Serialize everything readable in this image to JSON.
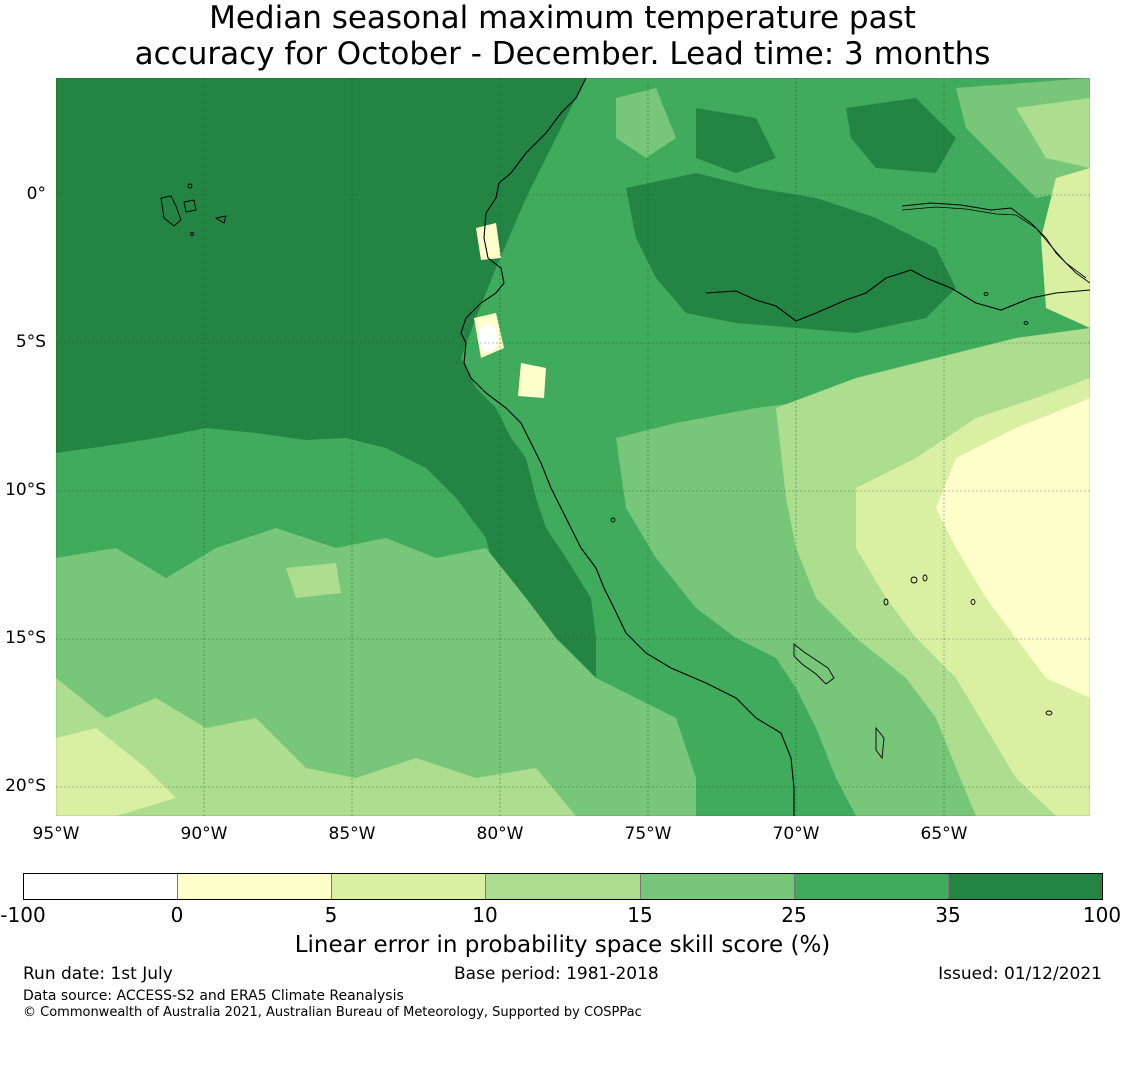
{
  "title": {
    "line1": "Median seasonal maximum temperature past",
    "line2": "accuracy for October - December. Lead time: 3 months"
  },
  "map": {
    "region": "Western South America and Eastern Pacific",
    "lon_labels": [
      "95°W",
      "90°W",
      "85°W",
      "80°W",
      "75°W",
      "70°W",
      "65°W"
    ],
    "lat_labels": [
      "0°",
      "5°S",
      "10°S",
      "15°S",
      "20°S"
    ],
    "gridlines": true,
    "features": [
      "coastline",
      "rivers",
      "lakes",
      "islands"
    ]
  },
  "colorbar": {
    "ticks": [
      "-100",
      "0",
      "5",
      "10",
      "15",
      "25",
      "35",
      "100"
    ],
    "colors": [
      "#ffffff",
      "#ffffcc",
      "#d9f0a3",
      "#addd8e",
      "#78c679",
      "#41ab5d",
      "#238443"
    ],
    "label": "Linear error in probability space skill score (%)"
  },
  "footer": {
    "run_date": "Run date: 1st July",
    "base_period": "Base period: 1981-2018",
    "issued": "Issued: 01/12/2021",
    "data_source": "Data source: ACCESS-S2 and ERA5 Climate Reanalysis",
    "copyright": "© Commonwealth of Australia 2021, Australian Bureau of Meteorology, Supported by COSPPac"
  }
}
